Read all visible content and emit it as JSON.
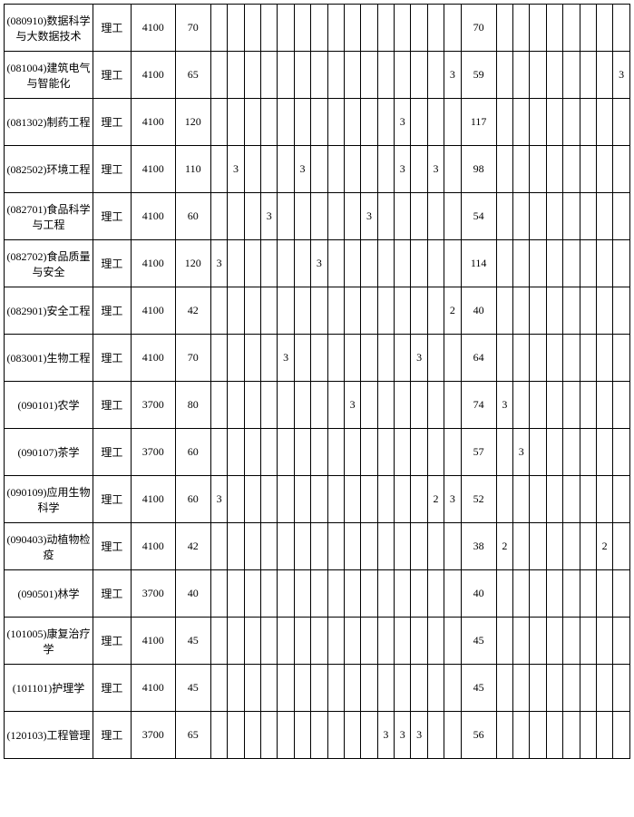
{
  "table": {
    "columns": [
      "name",
      "category",
      "fee",
      "total",
      "c5",
      "c6",
      "c7",
      "c8",
      "c9",
      "c10",
      "c11",
      "c12",
      "c13",
      "c14",
      "c15",
      "c16",
      "c17",
      "c18",
      "c19",
      "main",
      "c21",
      "c22",
      "c23",
      "c24",
      "c25",
      "c26",
      "c27",
      "c28"
    ],
    "col_classes": [
      "col-name",
      "col-cat",
      "col-fee",
      "col-total",
      "col-small",
      "col-small",
      "col-small",
      "col-small",
      "col-small",
      "col-small",
      "col-small",
      "col-small",
      "col-small",
      "col-small",
      "col-small",
      "col-small",
      "col-small",
      "col-small",
      "col-small",
      "col-main",
      "col-small",
      "col-small",
      "col-small",
      "col-small",
      "col-small",
      "col-small",
      "col-small",
      "col-small"
    ],
    "rows": [
      {
        "name": "(080910)数据科学与大数据技术",
        "category": "理工",
        "fee": "4100",
        "total": "70",
        "c5": "",
        "c6": "",
        "c7": "",
        "c8": "",
        "c9": "",
        "c10": "",
        "c11": "",
        "c12": "",
        "c13": "",
        "c14": "",
        "c15": "",
        "c16": "",
        "c17": "",
        "c18": "",
        "c19": "",
        "main": "70",
        "c21": "",
        "c22": "",
        "c23": "",
        "c24": "",
        "c25": "",
        "c26": "",
        "c27": "",
        "c28": ""
      },
      {
        "name": "(081004)建筑电气与智能化",
        "category": "理工",
        "fee": "4100",
        "total": "65",
        "c5": "",
        "c6": "",
        "c7": "",
        "c8": "",
        "c9": "",
        "c10": "",
        "c11": "",
        "c12": "",
        "c13": "",
        "c14": "",
        "c15": "",
        "c16": "",
        "c17": "",
        "c18": "",
        "c19": "3",
        "main": "59",
        "c21": "",
        "c22": "",
        "c23": "",
        "c24": "",
        "c25": "",
        "c26": "",
        "c27": "",
        "c28": "3"
      },
      {
        "name": "(081302)制药工程",
        "category": "理工",
        "fee": "4100",
        "total": "120",
        "c5": "",
        "c6": "",
        "c7": "",
        "c8": "",
        "c9": "",
        "c10": "",
        "c11": "",
        "c12": "",
        "c13": "",
        "c14": "",
        "c15": "",
        "c16": "3",
        "c17": "",
        "c18": "",
        "c19": "",
        "main": "117",
        "c21": "",
        "c22": "",
        "c23": "",
        "c24": "",
        "c25": "",
        "c26": "",
        "c27": "",
        "c28": ""
      },
      {
        "name": "(082502)环境工程",
        "category": "理工",
        "fee": "4100",
        "total": "110",
        "c5": "",
        "c6": "3",
        "c7": "",
        "c8": "",
        "c9": "",
        "c10": "3",
        "c11": "",
        "c12": "",
        "c13": "",
        "c14": "",
        "c15": "",
        "c16": "3",
        "c17": "",
        "c18": "3",
        "c19": "",
        "main": "98",
        "c21": "",
        "c22": "",
        "c23": "",
        "c24": "",
        "c25": "",
        "c26": "",
        "c27": "",
        "c28": ""
      },
      {
        "name": "(082701)食品科学与工程",
        "category": "理工",
        "fee": "4100",
        "total": "60",
        "c5": "",
        "c6": "",
        "c7": "",
        "c8": "3",
        "c9": "",
        "c10": "",
        "c11": "",
        "c12": "",
        "c13": "",
        "c14": "3",
        "c15": "",
        "c16": "",
        "c17": "",
        "c18": "",
        "c19": "",
        "main": "54",
        "c21": "",
        "c22": "",
        "c23": "",
        "c24": "",
        "c25": "",
        "c26": "",
        "c27": "",
        "c28": ""
      },
      {
        "name": "(082702)食品质量与安全",
        "category": "理工",
        "fee": "4100",
        "total": "120",
        "c5": "3",
        "c6": "",
        "c7": "",
        "c8": "",
        "c9": "",
        "c10": "",
        "c11": "3",
        "c12": "",
        "c13": "",
        "c14": "",
        "c15": "",
        "c16": "",
        "c17": "",
        "c18": "",
        "c19": "",
        "main": "114",
        "c21": "",
        "c22": "",
        "c23": "",
        "c24": "",
        "c25": "",
        "c26": "",
        "c27": "",
        "c28": ""
      },
      {
        "name": "(082901)安全工程",
        "category": "理工",
        "fee": "4100",
        "total": "42",
        "c5": "",
        "c6": "",
        "c7": "",
        "c8": "",
        "c9": "",
        "c10": "",
        "c11": "",
        "c12": "",
        "c13": "",
        "c14": "",
        "c15": "",
        "c16": "",
        "c17": "",
        "c18": "",
        "c19": "2",
        "main": "40",
        "c21": "",
        "c22": "",
        "c23": "",
        "c24": "",
        "c25": "",
        "c26": "",
        "c27": "",
        "c28": ""
      },
      {
        "name": "(083001)生物工程",
        "category": "理工",
        "fee": "4100",
        "total": "70",
        "c5": "",
        "c6": "",
        "c7": "",
        "c8": "",
        "c9": "3",
        "c10": "",
        "c11": "",
        "c12": "",
        "c13": "",
        "c14": "",
        "c15": "",
        "c16": "",
        "c17": "3",
        "c18": "",
        "c19": "",
        "main": "64",
        "c21": "",
        "c22": "",
        "c23": "",
        "c24": "",
        "c25": "",
        "c26": "",
        "c27": "",
        "c28": ""
      },
      {
        "name": "(090101)农学",
        "category": "理工",
        "fee": "3700",
        "total": "80",
        "c5": "",
        "c6": "",
        "c7": "",
        "c8": "",
        "c9": "",
        "c10": "",
        "c11": "",
        "c12": "",
        "c13": "3",
        "c14": "",
        "c15": "",
        "c16": "",
        "c17": "",
        "c18": "",
        "c19": "",
        "main": "74",
        "c21": "3",
        "c22": "",
        "c23": "",
        "c24": "",
        "c25": "",
        "c26": "",
        "c27": "",
        "c28": ""
      },
      {
        "name": "(090107)茶学",
        "category": "理工",
        "fee": "3700",
        "total": "60",
        "c5": "",
        "c6": "",
        "c7": "",
        "c8": "",
        "c9": "",
        "c10": "",
        "c11": "",
        "c12": "",
        "c13": "",
        "c14": "",
        "c15": "",
        "c16": "",
        "c17": "",
        "c18": "",
        "c19": "",
        "main": "57",
        "c21": "",
        "c22": "3",
        "c23": "",
        "c24": "",
        "c25": "",
        "c26": "",
        "c27": "",
        "c28": ""
      },
      {
        "name": "(090109)应用生物科学",
        "category": "理工",
        "fee": "4100",
        "total": "60",
        "c5": "3",
        "c6": "",
        "c7": "",
        "c8": "",
        "c9": "",
        "c10": "",
        "c11": "",
        "c12": "",
        "c13": "",
        "c14": "",
        "c15": "",
        "c16": "",
        "c17": "",
        "c18": "2",
        "c19": "3",
        "main": "52",
        "c21": "",
        "c22": "",
        "c23": "",
        "c24": "",
        "c25": "",
        "c26": "",
        "c27": "",
        "c28": ""
      },
      {
        "name": "(090403)动植物检疫",
        "category": "理工",
        "fee": "4100",
        "total": "42",
        "c5": "",
        "c6": "",
        "c7": "",
        "c8": "",
        "c9": "",
        "c10": "",
        "c11": "",
        "c12": "",
        "c13": "",
        "c14": "",
        "c15": "",
        "c16": "",
        "c17": "",
        "c18": "",
        "c19": "",
        "main": "38",
        "c21": "2",
        "c22": "",
        "c23": "",
        "c24": "",
        "c25": "",
        "c26": "",
        "c27": "2",
        "c28": ""
      },
      {
        "name": "(090501)林学",
        "category": "理工",
        "fee": "3700",
        "total": "40",
        "c5": "",
        "c6": "",
        "c7": "",
        "c8": "",
        "c9": "",
        "c10": "",
        "c11": "",
        "c12": "",
        "c13": "",
        "c14": "",
        "c15": "",
        "c16": "",
        "c17": "",
        "c18": "",
        "c19": "",
        "main": "40",
        "c21": "",
        "c22": "",
        "c23": "",
        "c24": "",
        "c25": "",
        "c26": "",
        "c27": "",
        "c28": ""
      },
      {
        "name": "(101005)康复治疗学",
        "category": "理工",
        "fee": "4100",
        "total": "45",
        "c5": "",
        "c6": "",
        "c7": "",
        "c8": "",
        "c9": "",
        "c10": "",
        "c11": "",
        "c12": "",
        "c13": "",
        "c14": "",
        "c15": "",
        "c16": "",
        "c17": "",
        "c18": "",
        "c19": "",
        "main": "45",
        "c21": "",
        "c22": "",
        "c23": "",
        "c24": "",
        "c25": "",
        "c26": "",
        "c27": "",
        "c28": ""
      },
      {
        "name": "(101101)护理学",
        "category": "理工",
        "fee": "4100",
        "total": "45",
        "c5": "",
        "c6": "",
        "c7": "",
        "c8": "",
        "c9": "",
        "c10": "",
        "c11": "",
        "c12": "",
        "c13": "",
        "c14": "",
        "c15": "",
        "c16": "",
        "c17": "",
        "c18": "",
        "c19": "",
        "main": "45",
        "c21": "",
        "c22": "",
        "c23": "",
        "c24": "",
        "c25": "",
        "c26": "",
        "c27": "",
        "c28": ""
      },
      {
        "name": "(120103)工程管理",
        "category": "理工",
        "fee": "3700",
        "total": "65",
        "c5": "",
        "c6": "",
        "c7": "",
        "c8": "",
        "c9": "",
        "c10": "",
        "c11": "",
        "c12": "",
        "c13": "",
        "c14": "",
        "c15": "3",
        "c16": "3",
        "c17": "3",
        "c18": "",
        "c19": "",
        "main": "56",
        "c21": "",
        "c22": "",
        "c23": "",
        "c24": "",
        "c25": "",
        "c26": "",
        "c27": "",
        "c28": ""
      }
    ]
  }
}
